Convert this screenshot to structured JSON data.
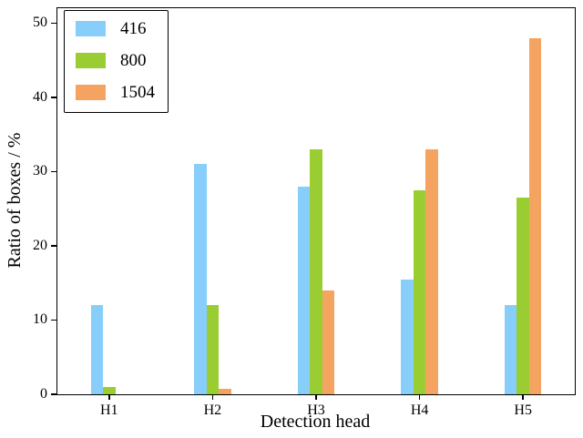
{
  "figure": {
    "background": "#ffffff",
    "axis_color": "#000000"
  },
  "chart_data": {
    "type": "bar",
    "title": "",
    "xlabel": "Detection head",
    "ylabel": "Ratio of boxes / %",
    "categories": [
      "H1",
      "H2",
      "H3",
      "H4",
      "H5"
    ],
    "series": [
      {
        "name": "416",
        "color": "#87CEFA",
        "values": [
          12,
          31,
          28,
          15.5,
          12
        ]
      },
      {
        "name": "800",
        "color": "#9ACD32",
        "values": [
          1,
          12,
          33,
          27.5,
          26.5
        ]
      },
      {
        "name": "1504",
        "color": "#F4A460",
        "values": [
          0,
          0.7,
          14,
          33,
          48
        ]
      }
    ],
    "ylim": [
      0,
      52
    ],
    "yticks": [
      0,
      10,
      20,
      30,
      40,
      50
    ],
    "grid": false,
    "legend_position": "upper left"
  }
}
